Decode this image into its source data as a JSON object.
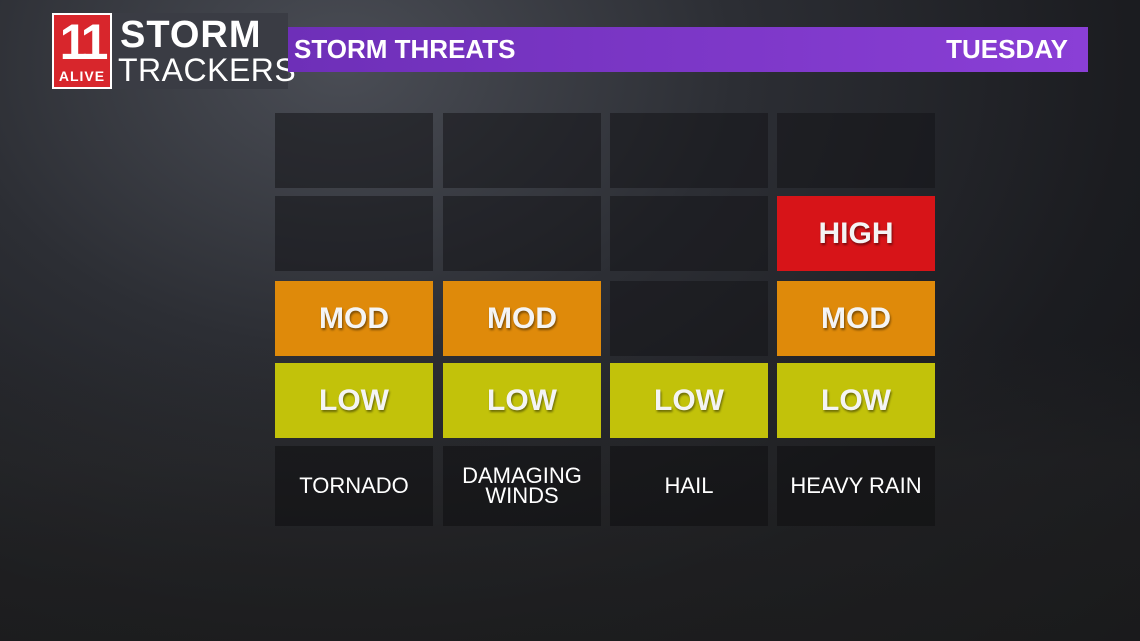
{
  "logo": {
    "number": "11",
    "sub": "ALIVE"
  },
  "brand": {
    "line1": "STORM",
    "line2": "TRACKERS"
  },
  "header": {
    "title": "STORM THREATS",
    "day": "TUESDAY"
  },
  "threats": [
    {
      "name": "TORNADO",
      "level": "MOD",
      "levels": [
        "",
        "",
        "MOD",
        "LOW"
      ]
    },
    {
      "name": "DAMAGING WINDS",
      "level": "MOD",
      "levels": [
        "",
        "",
        "MOD",
        "LOW"
      ]
    },
    {
      "name": "HAIL",
      "level": "LOW",
      "levels": [
        "",
        "",
        "",
        "LOW"
      ]
    },
    {
      "name": "HEAVY RAIN",
      "level": "HIGH",
      "levels": [
        "",
        "HIGH",
        "MOD",
        "LOW"
      ]
    }
  ],
  "colors": {
    "high": "#d71418",
    "mod": "#df8a0a",
    "low": "#c2c20a",
    "header": "#7a35c8"
  }
}
